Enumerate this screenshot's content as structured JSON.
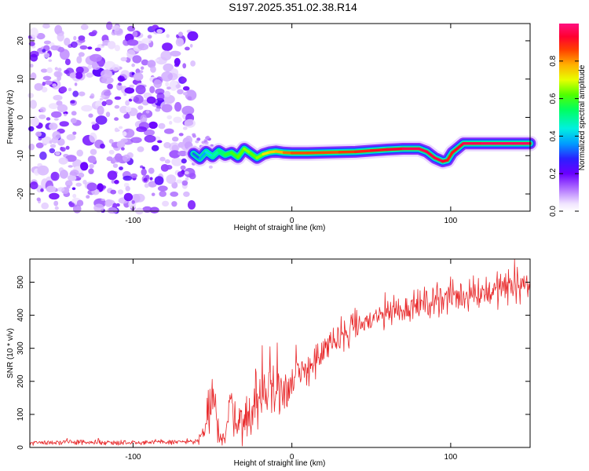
{
  "title": "S197.2025.351.02.38.R14",
  "chart_data": [
    {
      "type": "heatmap",
      "xlabel": "Height of straight line (km)",
      "ylabel": "Frequency (Hz)",
      "xlim": [
        -165,
        150
      ],
      "ylim": [
        -24.5,
        24.5
      ],
      "xticks": [
        -100,
        0,
        100
      ],
      "yticks": [
        -20,
        -10,
        0,
        10,
        20
      ],
      "colorbar": {
        "label": "Normalized spectral amplitude",
        "range": [
          0,
          1
        ],
        "ticks": [
          0.0,
          0.2,
          0.4,
          0.6,
          0.8
        ]
      },
      "noise_region": {
        "x_from": -165,
        "x_to": -62,
        "y_from": -24.5,
        "y_to": 24
      },
      "track": [
        {
          "x": -62,
          "y": -9.5,
          "amp": 0.3
        },
        {
          "x": -58,
          "y": -10.8,
          "amp": 0.35
        },
        {
          "x": -54,
          "y": -9.0,
          "amp": 0.4
        },
        {
          "x": -50,
          "y": -10.2,
          "amp": 0.45
        },
        {
          "x": -46,
          "y": -8.8,
          "amp": 0.5
        },
        {
          "x": -42,
          "y": -9.8,
          "amp": 0.55
        },
        {
          "x": -38,
          "y": -9.2,
          "amp": 0.6
        },
        {
          "x": -34,
          "y": -10.4,
          "amp": 0.6
        },
        {
          "x": -30,
          "y": -8.2,
          "amp": 0.65
        },
        {
          "x": -26,
          "y": -9.4,
          "amp": 0.65
        },
        {
          "x": -22,
          "y": -10.6,
          "amp": 0.6
        },
        {
          "x": -18,
          "y": -9.6,
          "amp": 0.7
        },
        {
          "x": -14,
          "y": -9.1,
          "amp": 0.75
        },
        {
          "x": -10,
          "y": -8.9,
          "amp": 0.75
        },
        {
          "x": -5,
          "y": -9.2,
          "amp": 0.8
        },
        {
          "x": 0,
          "y": -9.3,
          "amp": 0.85
        },
        {
          "x": 10,
          "y": -9.3,
          "amp": 0.85
        },
        {
          "x": 20,
          "y": -9.2,
          "amp": 0.85
        },
        {
          "x": 30,
          "y": -9.1,
          "amp": 0.85
        },
        {
          "x": 40,
          "y": -9.0,
          "amp": 0.88
        },
        {
          "x": 50,
          "y": -8.7,
          "amp": 0.9
        },
        {
          "x": 60,
          "y": -8.4,
          "amp": 0.92
        },
        {
          "x": 70,
          "y": -8.2,
          "amp": 0.95
        },
        {
          "x": 80,
          "y": -8.2,
          "amp": 0.97
        },
        {
          "x": 85,
          "y": -9.0,
          "amp": 0.95
        },
        {
          "x": 90,
          "y": -10.6,
          "amp": 0.95
        },
        {
          "x": 95,
          "y": -11.5,
          "amp": 0.95
        },
        {
          "x": 98,
          "y": -11.2,
          "amp": 0.9
        },
        {
          "x": 101,
          "y": -9.2,
          "amp": 0.9
        },
        {
          "x": 104,
          "y": -8.2,
          "amp": 0.92
        },
        {
          "x": 108,
          "y": -6.8,
          "amp": 0.95
        },
        {
          "x": 120,
          "y": -6.8,
          "amp": 0.97
        },
        {
          "x": 130,
          "y": -6.8,
          "amp": 0.97
        },
        {
          "x": 140,
          "y": -6.8,
          "amp": 0.97
        },
        {
          "x": 150,
          "y": -6.8,
          "amp": 0.97
        }
      ]
    },
    {
      "type": "line",
      "xlabel": "Height of straight line (km)",
      "ylabel": "SNR (10 * v/v)",
      "xlim": [
        -165,
        150
      ],
      "ylim": [
        0,
        570
      ],
      "xticks": [
        -100,
        0,
        100
      ],
      "yticks": [
        0,
        100,
        200,
        300,
        400,
        500
      ],
      "series": [
        {
          "name": "SNR",
          "color": "#e8282a",
          "x": [
            -165,
            -120,
            -80,
            -60,
            -55,
            -52,
            -50,
            -48,
            -45,
            -42,
            -40,
            -38,
            -35,
            -30,
            -25,
            -20,
            -15,
            -12,
            -10,
            -5,
            0,
            5,
            10,
            15,
            20,
            30,
            40,
            50,
            60,
            70,
            80,
            90,
            100,
            110,
            120,
            130,
            140,
            150
          ],
          "mean": [
            15,
            15,
            16,
            18,
            45,
            110,
            150,
            70,
            35,
            25,
            100,
            140,
            90,
            80,
            120,
            140,
            150,
            200,
            175,
            180,
            190,
            220,
            240,
            265,
            290,
            330,
            365,
            385,
            405,
            420,
            430,
            445,
            455,
            460,
            470,
            480,
            490,
            495
          ],
          "amp": [
            7,
            7,
            7,
            8,
            30,
            80,
            90,
            50,
            25,
            20,
            60,
            70,
            60,
            55,
            70,
            75,
            80,
            110,
            80,
            70,
            60,
            55,
            50,
            45,
            45,
            45,
            40,
            40,
            40,
            40,
            40,
            40,
            45,
            45,
            45,
            45,
            50,
            50
          ]
        }
      ]
    }
  ],
  "colors": {
    "signal": "#e8282a",
    "frame": "#000000"
  }
}
